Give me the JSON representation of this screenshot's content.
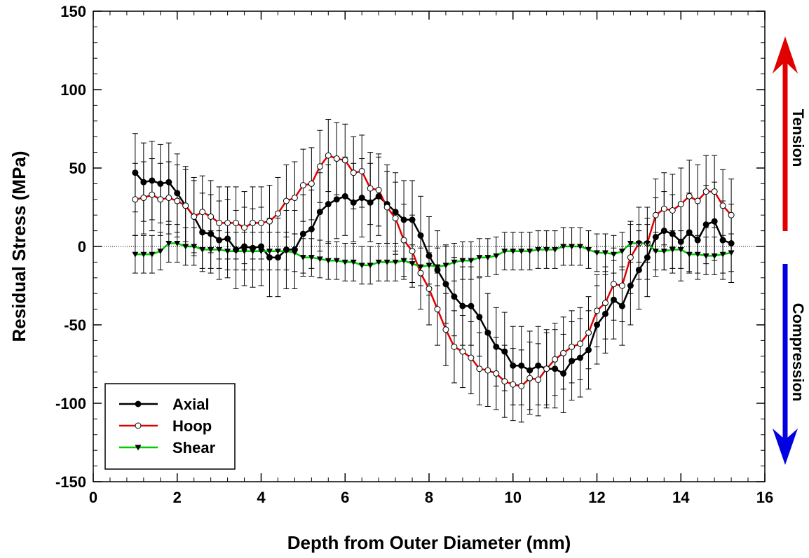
{
  "chart_data": {
    "type": "line",
    "xlabel": "Depth from Outer Diameter (mm)",
    "ylabel": "Residual Stress (MPa)",
    "xlim": [
      0,
      16
    ],
    "ylim": [
      -150,
      150
    ],
    "x_ticks": [
      "0",
      "2",
      "4",
      "6",
      "8",
      "10",
      "12",
      "14",
      "16"
    ],
    "y_ticks": [
      "150",
      "100",
      "50",
      "0",
      "-50",
      "-100",
      "-150"
    ],
    "x_tick_values": [
      0,
      2,
      4,
      6,
      8,
      10,
      12,
      14,
      16
    ],
    "y_tick_values": [
      150,
      100,
      50,
      0,
      -50,
      -100,
      -150
    ],
    "grid": false,
    "legend_position": "bottom-left",
    "annotations": {
      "tension": "Tension",
      "compression": "Compression",
      "tension_color": "#e00000",
      "compression_color": "#0000e0"
    },
    "series": [
      {
        "name": "Axial",
        "color": "#000000",
        "marker": "filled-circle",
        "error": 25,
        "points": [
          [
            1.0,
            47
          ],
          [
            1.2,
            41
          ],
          [
            1.4,
            42
          ],
          [
            1.6,
            40
          ],
          [
            1.8,
            41
          ],
          [
            2.0,
            34
          ],
          [
            2.2,
            26
          ],
          [
            2.4,
            19
          ],
          [
            2.6,
            9
          ],
          [
            2.8,
            8
          ],
          [
            3.0,
            4
          ],
          [
            3.2,
            5
          ],
          [
            3.4,
            -2
          ],
          [
            3.6,
            0
          ],
          [
            3.8,
            -1
          ],
          [
            4.0,
            0
          ],
          [
            4.2,
            -7
          ],
          [
            4.4,
            -7
          ],
          [
            4.6,
            -2
          ],
          [
            4.8,
            -2
          ],
          [
            5.0,
            8
          ],
          [
            5.2,
            11
          ],
          [
            5.4,
            22
          ],
          [
            5.6,
            27
          ],
          [
            5.8,
            30
          ],
          [
            6.0,
            32
          ],
          [
            6.2,
            28
          ],
          [
            6.4,
            31
          ],
          [
            6.6,
            28
          ],
          [
            6.8,
            32
          ],
          [
            7.0,
            27
          ],
          [
            7.2,
            22
          ],
          [
            7.4,
            17
          ],
          [
            7.6,
            17
          ],
          [
            7.8,
            7
          ],
          [
            8.0,
            -6
          ],
          [
            8.2,
            -15
          ],
          [
            8.4,
            -24
          ],
          [
            8.6,
            -32
          ],
          [
            8.8,
            -38
          ],
          [
            9.0,
            -38
          ],
          [
            9.2,
            -45
          ],
          [
            9.4,
            -55
          ],
          [
            9.6,
            -64
          ],
          [
            9.8,
            -67
          ],
          [
            10.0,
            -76
          ],
          [
            10.2,
            -76
          ],
          [
            10.4,
            -79
          ],
          [
            10.6,
            -76
          ],
          [
            10.8,
            -78
          ],
          [
            11.0,
            -78
          ],
          [
            11.2,
            -81
          ],
          [
            11.4,
            -73
          ],
          [
            11.6,
            -71
          ],
          [
            11.8,
            -66
          ],
          [
            12.0,
            -50
          ],
          [
            12.2,
            -43
          ],
          [
            12.4,
            -34
          ],
          [
            12.6,
            -38
          ],
          [
            12.8,
            -25
          ],
          [
            13.0,
            -15
          ],
          [
            13.2,
            -7
          ],
          [
            13.4,
            6
          ],
          [
            13.6,
            10
          ],
          [
            13.8,
            8
          ],
          [
            14.0,
            3
          ],
          [
            14.2,
            9
          ],
          [
            14.4,
            4
          ],
          [
            14.6,
            14
          ],
          [
            14.8,
            16
          ],
          [
            15.0,
            4
          ],
          [
            15.2,
            2
          ]
        ]
      },
      {
        "name": "Hoop",
        "color": "#e00000",
        "marker": "open-circle",
        "error": 23,
        "points": [
          [
            1.0,
            30
          ],
          [
            1.2,
            31
          ],
          [
            1.4,
            33
          ],
          [
            1.6,
            30
          ],
          [
            1.8,
            31
          ],
          [
            2.0,
            29
          ],
          [
            2.2,
            26
          ],
          [
            2.4,
            19
          ],
          [
            2.6,
            22
          ],
          [
            2.8,
            19
          ],
          [
            3.0,
            15
          ],
          [
            3.2,
            15
          ],
          [
            3.4,
            15
          ],
          [
            3.6,
            12
          ],
          [
            3.8,
            15
          ],
          [
            4.0,
            15
          ],
          [
            4.2,
            16
          ],
          [
            4.4,
            21
          ],
          [
            4.6,
            29
          ],
          [
            4.8,
            31
          ],
          [
            5.0,
            39
          ],
          [
            5.2,
            40
          ],
          [
            5.4,
            51
          ],
          [
            5.6,
            58
          ],
          [
            5.8,
            56
          ],
          [
            6.0,
            55
          ],
          [
            6.2,
            47
          ],
          [
            6.4,
            48
          ],
          [
            6.6,
            37
          ],
          [
            6.8,
            36
          ],
          [
            7.0,
            25
          ],
          [
            7.2,
            18
          ],
          [
            7.4,
            4
          ],
          [
            7.6,
            -3
          ],
          [
            7.8,
            -17
          ],
          [
            8.0,
            -27
          ],
          [
            8.2,
            -40
          ],
          [
            8.4,
            -53
          ],
          [
            8.6,
            -64
          ],
          [
            8.8,
            -67
          ],
          [
            9.0,
            -71
          ],
          [
            9.2,
            -78
          ],
          [
            9.4,
            -79
          ],
          [
            9.6,
            -81
          ],
          [
            9.8,
            -86
          ],
          [
            10.0,
            -88
          ],
          [
            10.2,
            -89
          ],
          [
            10.4,
            -84
          ],
          [
            10.6,
            -85
          ],
          [
            10.8,
            -78
          ],
          [
            11.0,
            -72
          ],
          [
            11.2,
            -68
          ],
          [
            11.4,
            -64
          ],
          [
            11.6,
            -62
          ],
          [
            11.8,
            -55
          ],
          [
            12.0,
            -41
          ],
          [
            12.2,
            -36
          ],
          [
            12.4,
            -24
          ],
          [
            12.6,
            -25
          ],
          [
            12.8,
            -7
          ],
          [
            13.0,
            2
          ],
          [
            13.2,
            2
          ],
          [
            13.4,
            20
          ],
          [
            13.6,
            24
          ],
          [
            13.8,
            23
          ],
          [
            14.0,
            27
          ],
          [
            14.2,
            32
          ],
          [
            14.4,
            29
          ],
          [
            14.6,
            35
          ],
          [
            14.8,
            35
          ],
          [
            15.0,
            26
          ],
          [
            15.2,
            20
          ]
        ]
      },
      {
        "name": "Shear",
        "color": "#00cc00",
        "marker": "filled-triangle-down",
        "error": 12,
        "points": [
          [
            1.0,
            -5
          ],
          [
            1.2,
            -5
          ],
          [
            1.4,
            -5
          ],
          [
            1.6,
            -3
          ],
          [
            1.8,
            2
          ],
          [
            2.0,
            2
          ],
          [
            2.2,
            0
          ],
          [
            2.4,
            0
          ],
          [
            2.6,
            -2
          ],
          [
            2.8,
            -2
          ],
          [
            3.0,
            -2
          ],
          [
            3.2,
            -3
          ],
          [
            3.4,
            -3
          ],
          [
            3.6,
            -3
          ],
          [
            3.8,
            -3
          ],
          [
            4.0,
            -3
          ],
          [
            4.2,
            -3
          ],
          [
            4.4,
            -3
          ],
          [
            4.6,
            -3
          ],
          [
            4.8,
            -4
          ],
          [
            5.0,
            -7
          ],
          [
            5.2,
            -7
          ],
          [
            5.4,
            -8
          ],
          [
            5.6,
            -9
          ],
          [
            5.8,
            -9
          ],
          [
            6.0,
            -10
          ],
          [
            6.2,
            -10
          ],
          [
            6.4,
            -12
          ],
          [
            6.6,
            -12
          ],
          [
            6.8,
            -10
          ],
          [
            7.0,
            -10
          ],
          [
            7.2,
            -10
          ],
          [
            7.4,
            -9
          ],
          [
            7.6,
            -11
          ],
          [
            7.8,
            -13
          ],
          [
            8.0,
            -12
          ],
          [
            8.2,
            -13
          ],
          [
            8.4,
            -12
          ],
          [
            8.6,
            -10
          ],
          [
            8.8,
            -9
          ],
          [
            9.0,
            -9
          ],
          [
            9.2,
            -7
          ],
          [
            9.4,
            -7
          ],
          [
            9.6,
            -6
          ],
          [
            9.8,
            -3
          ],
          [
            10.0,
            -3
          ],
          [
            10.2,
            -3
          ],
          [
            10.4,
            -3
          ],
          [
            10.6,
            -2
          ],
          [
            10.8,
            -2
          ],
          [
            11.0,
            -2
          ],
          [
            11.2,
            0
          ],
          [
            11.4,
            0
          ],
          [
            11.6,
            0
          ],
          [
            11.8,
            -2
          ],
          [
            12.0,
            -4
          ],
          [
            12.2,
            -4
          ],
          [
            12.4,
            -5
          ],
          [
            12.6,
            -3
          ],
          [
            12.8,
            2
          ],
          [
            13.0,
            2
          ],
          [
            13.2,
            2
          ],
          [
            13.4,
            -3
          ],
          [
            13.6,
            -3
          ],
          [
            13.8,
            -2
          ],
          [
            14.0,
            -2
          ],
          [
            14.2,
            -5
          ],
          [
            14.4,
            -5
          ],
          [
            14.6,
            -6
          ],
          [
            14.8,
            -6
          ],
          [
            15.0,
            -5
          ],
          [
            15.2,
            -4
          ]
        ]
      }
    ]
  }
}
